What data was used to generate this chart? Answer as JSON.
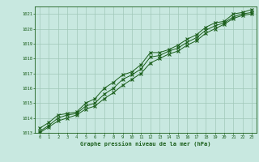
{
  "x": [
    0,
    1,
    2,
    3,
    4,
    5,
    6,
    7,
    8,
    9,
    10,
    11,
    12,
    13,
    14,
    15,
    16,
    17,
    18,
    19,
    20,
    21,
    22,
    23
  ],
  "line1": [
    1013.3,
    1013.7,
    1014.2,
    1014.3,
    1014.4,
    1015.0,
    1015.3,
    1016.0,
    1016.4,
    1016.9,
    1017.1,
    1017.6,
    1018.4,
    1018.4,
    1018.6,
    1018.9,
    1019.3,
    1019.6,
    1020.1,
    1020.4,
    1020.5,
    1021.0,
    1021.1,
    1021.3
  ],
  "line2": [
    1013.1,
    1013.5,
    1014.0,
    1014.2,
    1014.3,
    1014.8,
    1015.0,
    1015.6,
    1016.0,
    1016.6,
    1016.9,
    1017.3,
    1018.1,
    1018.2,
    1018.5,
    1018.7,
    1019.1,
    1019.4,
    1019.9,
    1020.2,
    1020.4,
    1020.8,
    1021.0,
    1021.1
  ],
  "line3": [
    1013.0,
    1013.4,
    1013.8,
    1014.0,
    1014.2,
    1014.6,
    1014.8,
    1015.3,
    1015.7,
    1016.2,
    1016.6,
    1017.0,
    1017.7,
    1018.0,
    1018.3,
    1018.5,
    1018.9,
    1019.2,
    1019.7,
    1020.0,
    1020.3,
    1020.7,
    1020.9,
    1021.0
  ],
  "line_color": "#1a5e1a",
  "bg_color": "#c8e8e0",
  "grid_color": "#a0c8b8",
  "xlabel": "Graphe pression niveau de la mer (hPa)",
  "ylim": [
    1013,
    1021.5
  ],
  "yticks": [
    1013,
    1014,
    1015,
    1016,
    1017,
    1018,
    1019,
    1020,
    1021
  ],
  "xticks": [
    0,
    1,
    2,
    3,
    4,
    5,
    6,
    7,
    8,
    9,
    10,
    11,
    12,
    13,
    14,
    15,
    16,
    17,
    18,
    19,
    20,
    21,
    22,
    23
  ],
  "xlim": [
    -0.5,
    23.5
  ]
}
